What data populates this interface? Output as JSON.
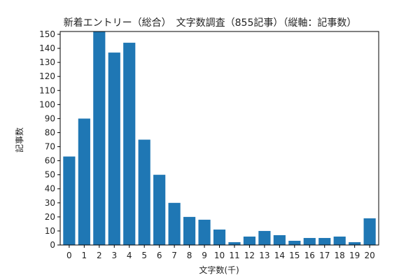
{
  "chart_data": {
    "type": "bar",
    "title": "新着エントリー（総合）　文字数調査（855記事）（縦軸：記事数）",
    "xlabel": "文字数(千)",
    "ylabel": "記事数",
    "categories": [
      "0",
      "1",
      "2",
      "3",
      "4",
      "5",
      "6",
      "7",
      "8",
      "9",
      "10",
      "11",
      "12",
      "13",
      "14",
      "15",
      "16",
      "17",
      "18",
      "19",
      "20"
    ],
    "values": [
      63,
      90,
      152,
      137,
      144,
      75,
      50,
      30,
      20,
      18,
      11,
      2,
      6,
      10,
      7,
      3,
      5,
      5,
      6,
      2,
      19
    ],
    "ylim": [
      0,
      152
    ],
    "yticks": [
      0,
      10,
      20,
      30,
      40,
      50,
      60,
      70,
      80,
      90,
      100,
      110,
      120,
      130,
      140,
      150
    ],
    "grid": false,
    "bar_color": "#1f77b4"
  }
}
